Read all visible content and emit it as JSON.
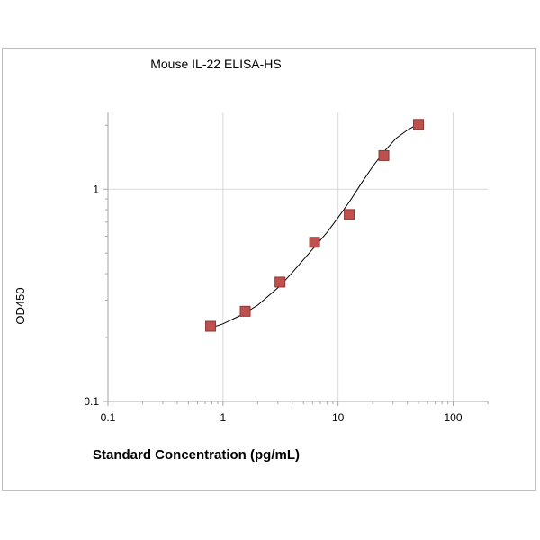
{
  "chart_data": {
    "type": "scatter",
    "title": "Mouse IL-22 ELISA-HS",
    "xlabel": "Standard Concentration (pg/mL)",
    "ylabel": "OD450",
    "x_scale": "log",
    "y_scale": "log",
    "xlim": [
      0.1,
      200
    ],
    "ylim": [
      0.1,
      2.3
    ],
    "x_ticks": [
      "0.1",
      "1",
      "10",
      "100"
    ],
    "y_ticks": [
      "0.1",
      "1"
    ],
    "grid": true,
    "marker_color": "#c0504d",
    "marker_edge_color": "#8c3836",
    "curve_color": "#000000",
    "series": [
      {
        "x": [
          0.78,
          1.56,
          3.13,
          6.25,
          12.5,
          25,
          50
        ],
        "y": [
          0.226,
          0.266,
          0.365,
          0.562,
          0.76,
          1.44,
          2.02
        ]
      }
    ],
    "fit_curve": {
      "x": [
        0.78,
        1.0,
        1.5,
        2.0,
        3.13,
        4.0,
        6.25,
        8.0,
        10.0,
        12.5,
        16.0,
        20.0,
        25.0,
        32.0,
        40.0,
        50.0
      ],
      "y": [
        0.222,
        0.232,
        0.258,
        0.284,
        0.35,
        0.405,
        0.535,
        0.625,
        0.735,
        0.87,
        1.07,
        1.28,
        1.5,
        1.74,
        1.9,
        2.03
      ]
    }
  }
}
